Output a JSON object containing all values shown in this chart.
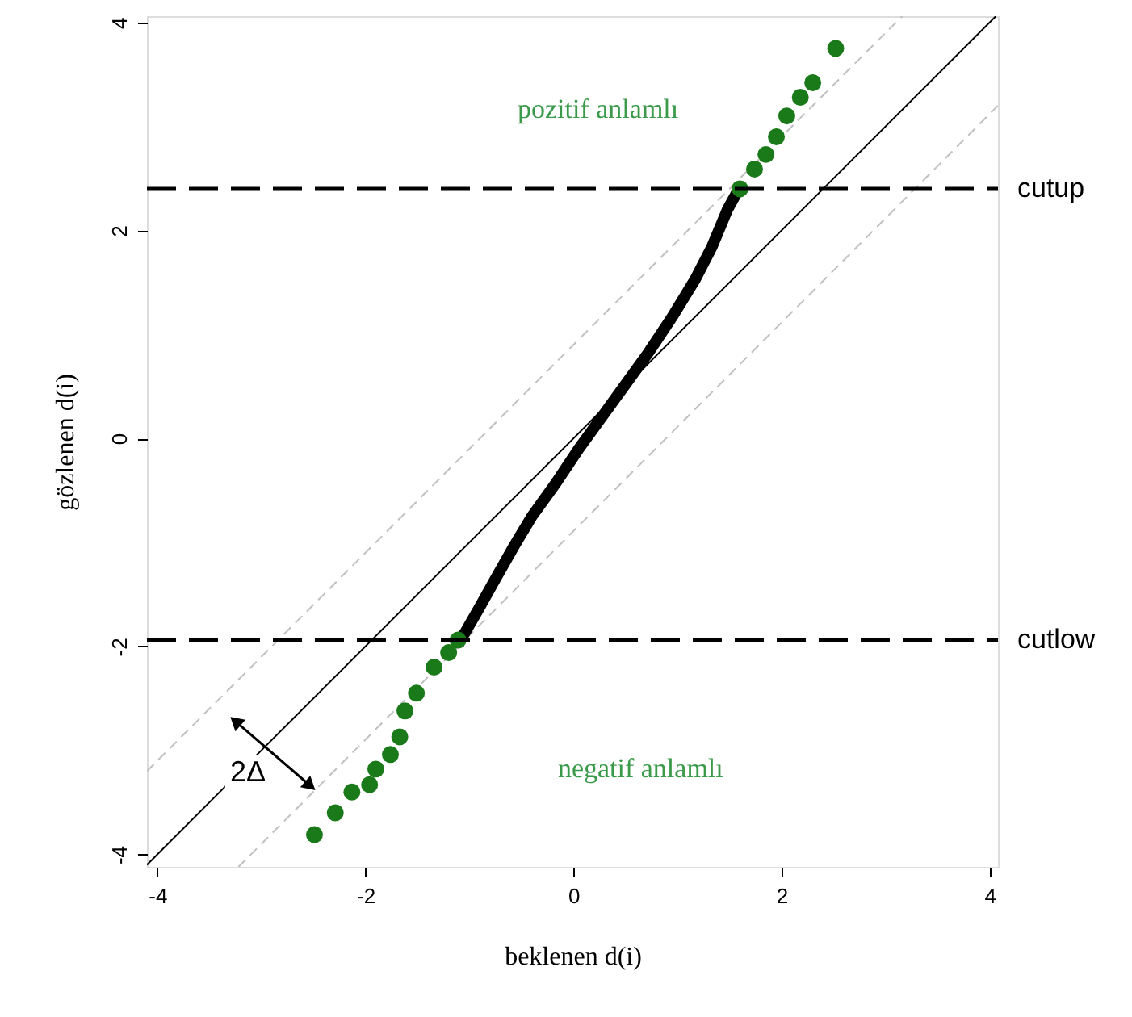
{
  "chart_data": {
    "type": "scatter",
    "xlabel": "beklenen d(i)",
    "ylabel": "gözlenen d(i)",
    "xlim": [
      -4.1,
      4.08
    ],
    "ylim": [
      -4.12,
      4.06
    ],
    "xticks": [
      -4,
      -2,
      0,
      2,
      4
    ],
    "yticks": [
      -4,
      -2,
      0,
      2,
      4
    ],
    "grid": false,
    "series": [
      {
        "type": "line",
        "color": "#000000",
        "line_style": "solid",
        "x": [
          -4.1,
          4.06
        ],
        "values": [
          -4.1,
          4.06
        ]
      },
      {
        "type": "line",
        "color": "#c0c0c0",
        "line_style": "dashed",
        "x": [
          -4.1,
          3.16
        ],
        "values": [
          -3.2,
          4.06
        ]
      },
      {
        "type": "line",
        "color": "#c0c0c0",
        "line_style": "dashed",
        "x": [
          -3.22,
          4.08
        ],
        "values": [
          -4.12,
          3.2
        ]
      },
      {
        "type": "line",
        "color": "#000000",
        "line_style": "solid",
        "x": [
          -1.11,
          -1.05,
          -0.9,
          -0.75,
          -0.58,
          -0.4,
          -0.17,
          0.05,
          0.29,
          0.5,
          0.71,
          0.95,
          1.17,
          1.33,
          1.48,
          1.59
        ],
        "values": [
          -1.94,
          -1.88,
          -1.62,
          -1.35,
          -1.05,
          -0.75,
          -0.43,
          -0.1,
          0.23,
          0.52,
          0.81,
          1.17,
          1.53,
          1.84,
          2.2,
          2.4
        ]
      },
      {
        "color": "#1a7a1a",
        "marker": "circle",
        "x": [
          -2.49,
          -2.29,
          -2.13,
          -1.96,
          -1.9,
          -1.76,
          -1.67,
          -1.62,
          -1.51,
          -1.34,
          -1.2,
          -1.11
        ],
        "values": [
          -3.81,
          -3.6,
          -3.4,
          -3.33,
          -3.18,
          -3.04,
          -2.87,
          -2.62,
          -2.45,
          -2.2,
          -2.06,
          -1.94
        ]
      },
      {
        "color": "#1a7a1a",
        "marker": "circle",
        "x": [
          1.6,
          1.74,
          1.85,
          1.95,
          2.05,
          2.18,
          2.3,
          2.52
        ],
        "values": [
          2.4,
          2.59,
          2.73,
          2.9,
          3.1,
          3.28,
          3.42,
          3.75
        ]
      }
    ],
    "ref_lines": [
      {
        "axis": "y",
        "value": 2.4,
        "label": "cutup",
        "color": "#000000",
        "line_style": "dashed"
      },
      {
        "axis": "y",
        "value": -1.94,
        "label": "cutlow",
        "color": "#000000",
        "line_style": "dashed"
      }
    ],
    "annotations": [
      "pozitif anlamlı",
      "negatif anlamlı",
      {
        "text": "2Δ",
        "x": -3.13,
        "y": -3.22
      }
    ]
  }
}
